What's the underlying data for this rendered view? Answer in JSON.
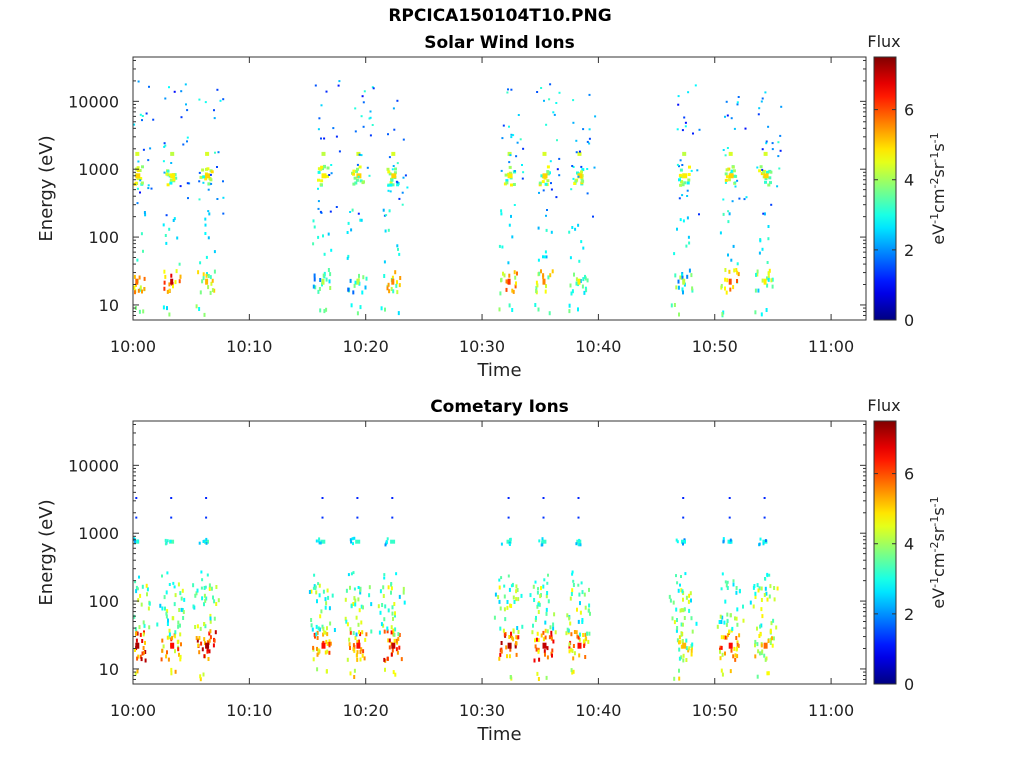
{
  "figure": {
    "title": "RPCICA150104T10.PNG"
  },
  "chart_data": [
    {
      "type": "heatmap",
      "title": "Solar Wind Ions",
      "xlabel": "Time",
      "ylabel": "Energy (eV)",
      "xlim": [
        "10:00",
        "11:03"
      ],
      "x_ticks": [
        "10:00",
        "10:10",
        "10:20",
        "10:30",
        "10:40",
        "10:50",
        "11:00"
      ],
      "y_scale": "log",
      "ylim": [
        6,
        45000
      ],
      "y_ticks": [
        "10",
        "100",
        "1000",
        "10000"
      ],
      "colorbar": {
        "title": "Flux",
        "label": "eV-1cm-2sr-1s-1",
        "ticks": [
          "0",
          "2",
          "4",
          "6"
        ],
        "range": [
          0,
          7.5
        ],
        "colormap": "jet"
      },
      "bursts": [
        {
          "start": "10:00",
          "end": "10:08"
        },
        {
          "start": "10:16",
          "end": "10:24"
        },
        {
          "start": "10:31",
          "end": "10:40"
        },
        {
          "start": "10:47",
          "end": "10:56"
        }
      ],
      "peaks": [
        {
          "time": "10:00",
          "energy": 800,
          "flux": 5.0
        },
        {
          "time": "10:03",
          "energy": 800,
          "flux": 4.8
        },
        {
          "time": "10:06",
          "energy": 800,
          "flux": 5.0
        },
        {
          "time": "10:00",
          "energy": 22,
          "flux": 5.8
        },
        {
          "time": "10:03",
          "energy": 22,
          "flux": 7.0
        },
        {
          "time": "10:06",
          "energy": 22,
          "flux": 5.2
        },
        {
          "time": "10:16",
          "energy": 800,
          "flux": 4.8
        },
        {
          "time": "10:19",
          "energy": 800,
          "flux": 5.0
        },
        {
          "time": "10:22",
          "energy": 800,
          "flux": 5.0
        },
        {
          "time": "10:16",
          "energy": 22,
          "flux": 4.2
        },
        {
          "time": "10:19",
          "energy": 22,
          "flux": 4.2
        },
        {
          "time": "10:22",
          "energy": 22,
          "flux": 5.6
        },
        {
          "time": "10:32",
          "energy": 800,
          "flux": 4.8
        },
        {
          "time": "10:35",
          "energy": 800,
          "flux": 5.0
        },
        {
          "time": "10:38",
          "energy": 800,
          "flux": 5.0
        },
        {
          "time": "10:32",
          "energy": 22,
          "flux": 6.2
        },
        {
          "time": "10:35",
          "energy": 22,
          "flux": 5.6
        },
        {
          "time": "10:38",
          "energy": 22,
          "flux": 4.8
        },
        {
          "time": "10:47",
          "energy": 800,
          "flux": 4.8
        },
        {
          "time": "10:51",
          "energy": 800,
          "flux": 5.0
        },
        {
          "time": "10:54",
          "energy": 800,
          "flux": 5.0
        },
        {
          "time": "10:47",
          "energy": 22,
          "flux": 4.2
        },
        {
          "time": "10:51",
          "energy": 22,
          "flux": 6.0
        },
        {
          "time": "10:54",
          "energy": 22,
          "flux": 4.8
        }
      ]
    },
    {
      "type": "heatmap",
      "title": "Cometary Ions",
      "xlabel": "Time",
      "ylabel": "Energy (eV)",
      "xlim": [
        "10:00",
        "11:03"
      ],
      "x_ticks": [
        "10:00",
        "10:10",
        "10:20",
        "10:30",
        "10:40",
        "10:50",
        "11:00"
      ],
      "y_scale": "log",
      "ylim": [
        6,
        45000
      ],
      "y_ticks": [
        "10",
        "100",
        "1000",
        "10000"
      ],
      "colorbar": {
        "title": "Flux",
        "label": "eV-1cm-2sr-1s-1",
        "ticks": [
          "0",
          "2",
          "4",
          "6"
        ],
        "range": [
          0,
          7.5
        ],
        "colormap": "jet"
      },
      "bursts": [
        {
          "start": "10:00",
          "end": "10:08"
        },
        {
          "start": "10:16",
          "end": "10:24"
        },
        {
          "start": "10:31",
          "end": "10:40"
        },
        {
          "start": "10:47",
          "end": "10:56"
        }
      ],
      "peaks": [
        {
          "time": "10:00",
          "energy": 750,
          "flux": 3.2
        },
        {
          "time": "10:03",
          "energy": 750,
          "flux": 3.4
        },
        {
          "time": "10:06",
          "energy": 750,
          "flux": 3.4
        },
        {
          "time": "10:00",
          "energy": 22,
          "flux": 7.2
        },
        {
          "time": "10:03",
          "energy": 22,
          "flux": 6.5
        },
        {
          "time": "10:06",
          "energy": 22,
          "flux": 7.2
        },
        {
          "time": "10:16",
          "energy": 750,
          "flux": 3.2
        },
        {
          "time": "10:19",
          "energy": 750,
          "flux": 3.2
        },
        {
          "time": "10:22",
          "energy": 750,
          "flux": 3.2
        },
        {
          "time": "10:16",
          "energy": 22,
          "flux": 6.5
        },
        {
          "time": "10:19",
          "energy": 22,
          "flux": 6.5
        },
        {
          "time": "10:22",
          "energy": 22,
          "flux": 7.0
        },
        {
          "time": "10:32",
          "energy": 750,
          "flux": 3.2
        },
        {
          "time": "10:35",
          "energy": 750,
          "flux": 3.2
        },
        {
          "time": "10:38",
          "energy": 750,
          "flux": 3.2
        },
        {
          "time": "10:32",
          "energy": 22,
          "flux": 7.2
        },
        {
          "time": "10:35",
          "energy": 22,
          "flux": 7.0
        },
        {
          "time": "10:38",
          "energy": 22,
          "flux": 6.5
        },
        {
          "time": "10:47",
          "energy": 750,
          "flux": 3.0
        },
        {
          "time": "10:51",
          "energy": 750,
          "flux": 3.0
        },
        {
          "time": "10:54",
          "energy": 750,
          "flux": 3.0
        },
        {
          "time": "10:47",
          "energy": 22,
          "flux": 5.2
        },
        {
          "time": "10:51",
          "energy": 22,
          "flux": 6.5
        },
        {
          "time": "10:54",
          "energy": 22,
          "flux": 5.8
        }
      ]
    }
  ]
}
